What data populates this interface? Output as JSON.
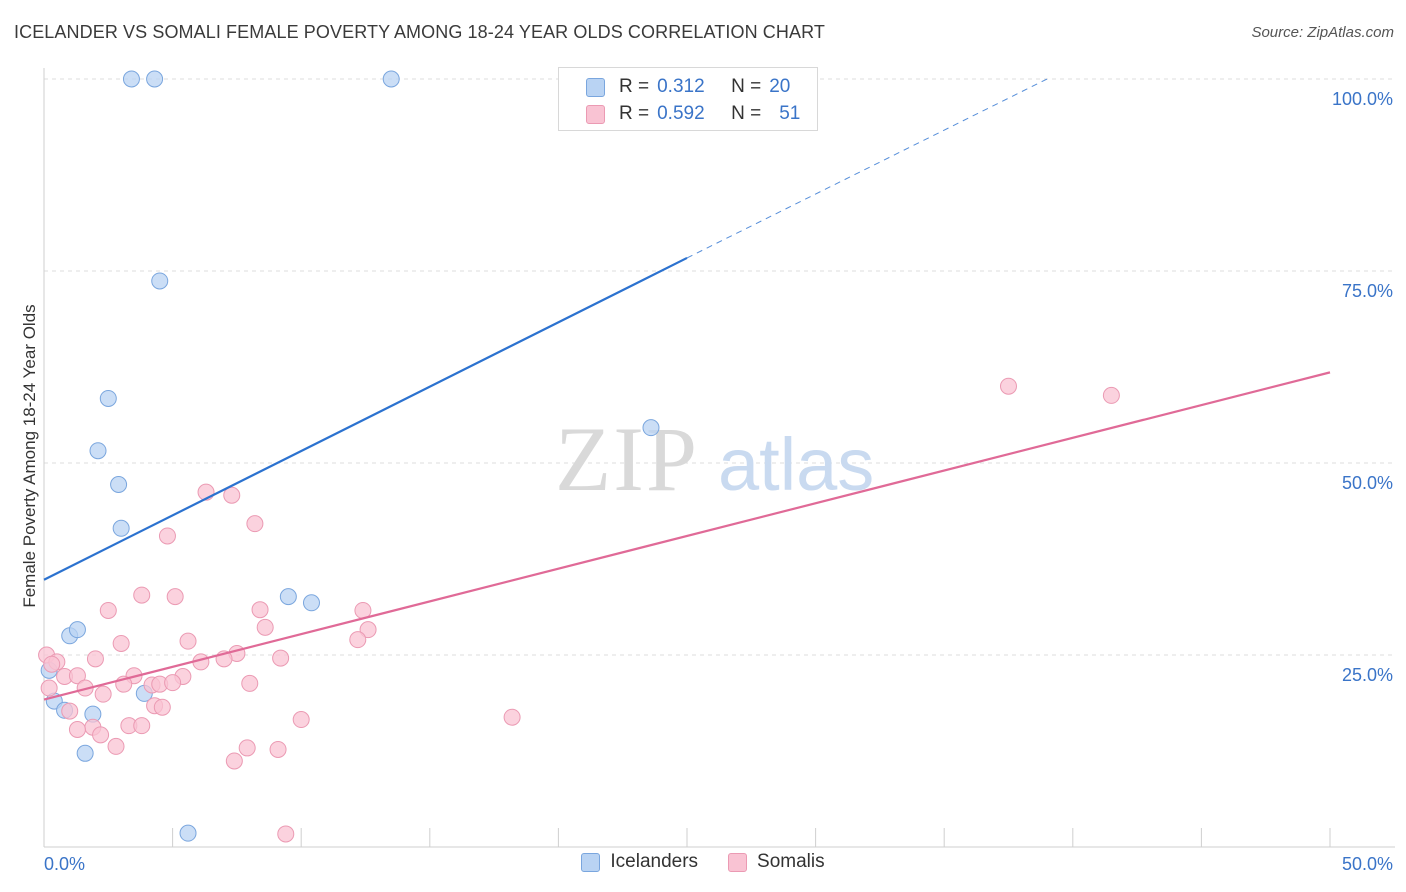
{
  "header": {
    "title": "ICELANDER VS SOMALI FEMALE POVERTY AMONG 18-24 YEAR OLDS CORRELATION CHART",
    "source": "Source: ZipAtlas.com"
  },
  "watermark": {
    "zip": "ZIP",
    "atlas": "atlas"
  },
  "legend_top": [
    {
      "r_label": "R =",
      "r_value": "0.312",
      "n_label": "N =",
      "n_value": "20"
    },
    {
      "r_label": "R =",
      "r_value": "0.592",
      "n_label": "N =",
      "n_value": "51"
    }
  ],
  "legend_bottom": [
    "Icelanders",
    "Somalis"
  ],
  "colors": {
    "icelanders_fill": "#b9d3f3",
    "icelanders_stroke": "#7aa6de",
    "icelanders_line": "#2c72cf",
    "somalis_fill": "#f9c3d3",
    "somalis_stroke": "#eb9ab3",
    "somalis_line": "#e06a97",
    "tick_label": "#3a74c8",
    "grid": "#dedede"
  },
  "chart_data": {
    "type": "scatter",
    "title": "ICELANDER VS SOMALI FEMALE POVERTY AMONG 18-24 YEAR OLDS CORRELATION CHART",
    "xlabel": "",
    "ylabel": "Female Poverty Among 18-24 Year Olds",
    "xlim": [
      0,
      50
    ],
    "ylim": [
      0,
      100
    ],
    "x_tick_labels": [
      {
        "value": 0,
        "label": "0.0%"
      },
      {
        "value": 50,
        "label": "50.0%"
      }
    ],
    "y_tick_labels": [
      {
        "value": 25,
        "label": "25.0%"
      },
      {
        "value": 50,
        "label": "50.0%"
      },
      {
        "value": 75,
        "label": "75.0%"
      },
      {
        "value": 100,
        "label": "100.0%"
      }
    ],
    "grid": true,
    "legend_placement": "top-center",
    "series": [
      {
        "name": "Icelanders",
        "points": [
          [
            3.4,
            100
          ],
          [
            4.3,
            100
          ],
          [
            13.5,
            100
          ],
          [
            4.5,
            73.7
          ],
          [
            2.5,
            58.4
          ],
          [
            2.1,
            51.6
          ],
          [
            2.9,
            47.2
          ],
          [
            3.0,
            41.5
          ],
          [
            23.6,
            54.6
          ],
          [
            9.5,
            32.6
          ],
          [
            10.4,
            31.8
          ],
          [
            1.0,
            27.5
          ],
          [
            1.3,
            28.3
          ],
          [
            0.2,
            23.0
          ],
          [
            0.4,
            19.0
          ],
          [
            0.8,
            17.8
          ],
          [
            1.9,
            17.3
          ],
          [
            3.9,
            20.0
          ],
          [
            1.6,
            12.2
          ],
          [
            5.6,
            1.8
          ]
        ],
        "trend": {
          "x1": 0,
          "y1": 34.8,
          "x2": 25,
          "y2": 76.7,
          "dashed_to_x": 39,
          "dashed_to_y": 100
        }
      },
      {
        "name": "Somalis",
        "points": [
          [
            37.5,
            60.0
          ],
          [
            41.5,
            58.8
          ],
          [
            6.3,
            46.2
          ],
          [
            7.3,
            45.8
          ],
          [
            8.2,
            42.1
          ],
          [
            4.8,
            40.5
          ],
          [
            3.8,
            32.8
          ],
          [
            5.1,
            32.6
          ],
          [
            2.5,
            30.8
          ],
          [
            8.4,
            30.9
          ],
          [
            12.4,
            30.8
          ],
          [
            8.6,
            28.6
          ],
          [
            12.6,
            28.3
          ],
          [
            3.0,
            26.5
          ],
          [
            5.6,
            26.8
          ],
          [
            12.2,
            27.0
          ],
          [
            7.5,
            25.2
          ],
          [
            0.1,
            25.0
          ],
          [
            0.5,
            24.1
          ],
          [
            2.0,
            24.5
          ],
          [
            6.1,
            24.1
          ],
          [
            7.0,
            24.5
          ],
          [
            9.2,
            24.6
          ],
          [
            0.8,
            22.2
          ],
          [
            1.3,
            22.3
          ],
          [
            3.5,
            22.3
          ],
          [
            5.4,
            22.2
          ],
          [
            3.1,
            21.2
          ],
          [
            4.2,
            21.1
          ],
          [
            4.5,
            21.2
          ],
          [
            5.0,
            21.4
          ],
          [
            8.0,
            21.3
          ],
          [
            1.6,
            20.7
          ],
          [
            2.3,
            19.9
          ],
          [
            0.2,
            20.7
          ],
          [
            4.3,
            18.4
          ],
          [
            4.6,
            18.2
          ],
          [
            1.0,
            17.7
          ],
          [
            1.9,
            15.6
          ],
          [
            1.3,
            15.3
          ],
          [
            2.2,
            14.6
          ],
          [
            3.3,
            15.8
          ],
          [
            3.8,
            15.8
          ],
          [
            10.0,
            16.6
          ],
          [
            18.2,
            16.9
          ],
          [
            2.8,
            13.1
          ],
          [
            7.9,
            12.9
          ],
          [
            9.1,
            12.7
          ],
          [
            7.4,
            11.2
          ],
          [
            9.4,
            1.7
          ],
          [
            0.3,
            23.8
          ]
        ],
        "trend": {
          "x1": 0,
          "y1": 19.2,
          "x2": 50,
          "y2": 61.8
        }
      }
    ]
  }
}
